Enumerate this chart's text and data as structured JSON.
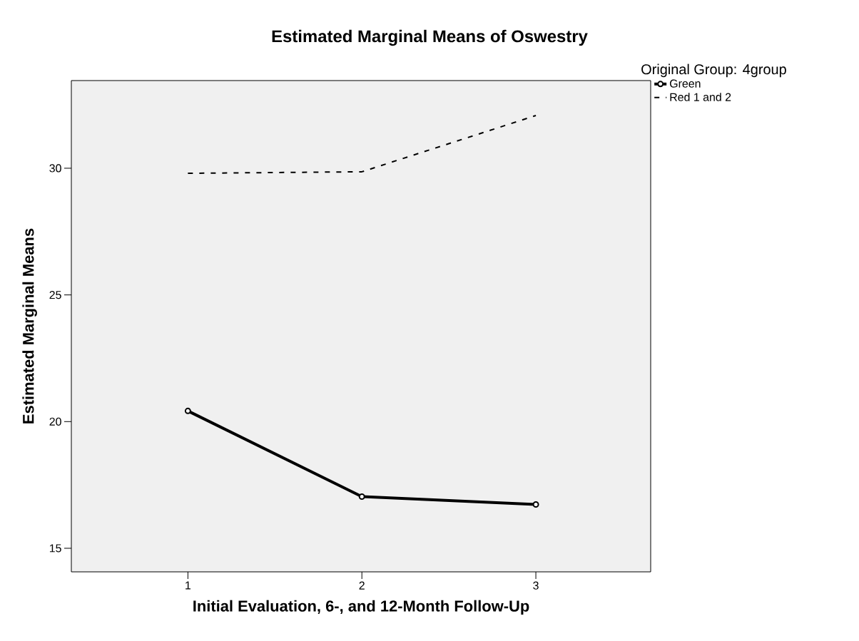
{
  "chart_data": {
    "type": "line",
    "title": "Estimated Marginal Means of Oswestry",
    "xlabel": "Initial Evaluation, 6-, and 12-Month Follow-Up",
    "ylabel": "Estimated Marginal Means",
    "legend_title": "Original Group: 4group",
    "categories": [
      "1",
      "2",
      "3"
    ],
    "ylim": [
      14.07,
      33.46
    ],
    "yticks": [
      15,
      20,
      25,
      30
    ],
    "grid": false,
    "legend": "top right",
    "series": [
      {
        "name": "Green",
        "color": "#000000",
        "values": [
          20.42,
          17.04,
          16.73
        ],
        "marker": "circle",
        "line_style": "solid"
      },
      {
        "name": "Red 1 and 2",
        "color": "#000000",
        "values": [
          29.8,
          29.86,
          32.08
        ],
        "marker": "none",
        "line_style": "dashed"
      }
    ]
  }
}
